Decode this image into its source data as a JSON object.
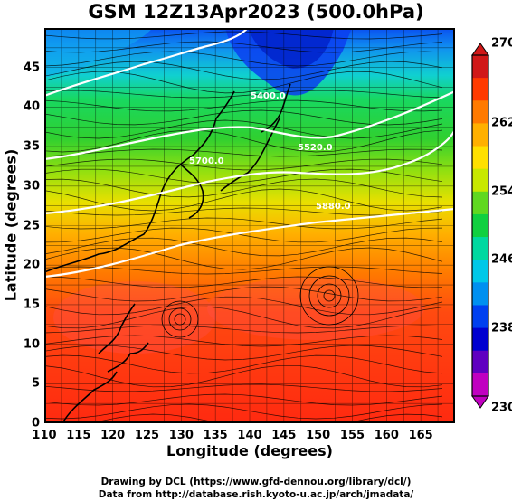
{
  "title": "GSM 12Z13Apr2023 (500.0hPa)",
  "xlabel": "Longitude (degrees)",
  "ylabel": "Latitude (degrees)",
  "x_ticks": [
    "110",
    "115",
    "120",
    "125",
    "130",
    "135",
    "140",
    "145",
    "150",
    "155",
    "160",
    "165"
  ],
  "y_ticks": [
    "0",
    "5",
    "10",
    "15",
    "20",
    "25",
    "30",
    "35",
    "40",
    "45"
  ],
  "colorbar": {
    "ticks": [
      "270",
      "262",
      "254",
      "246",
      "238",
      "230"
    ],
    "colors": [
      "#d01818",
      "#ff3a00",
      "#ff7a00",
      "#ffb000",
      "#ffe000",
      "#c8e800",
      "#60d820",
      "#10d040",
      "#00d8a0",
      "#00c8e8",
      "#0090f0",
      "#0040f0",
      "#0000d0",
      "#6000c0",
      "#c000c0"
    ]
  },
  "map_data": {
    "lon_range": [
      110,
      170
    ],
    "lat_range": [
      0,
      50
    ],
    "field": "temperature (K) with streamlines",
    "contour_labels": [
      "5400.0",
      "5520.0",
      "5700.0",
      "5880.0"
    ]
  },
  "credits": [
    "Drawing by DCL (https://www.gfd-dennou.org/library/dcl/)",
    "Data from http://database.rish.kyoto-u.ac.jp/arch/jmadata/"
  ]
}
